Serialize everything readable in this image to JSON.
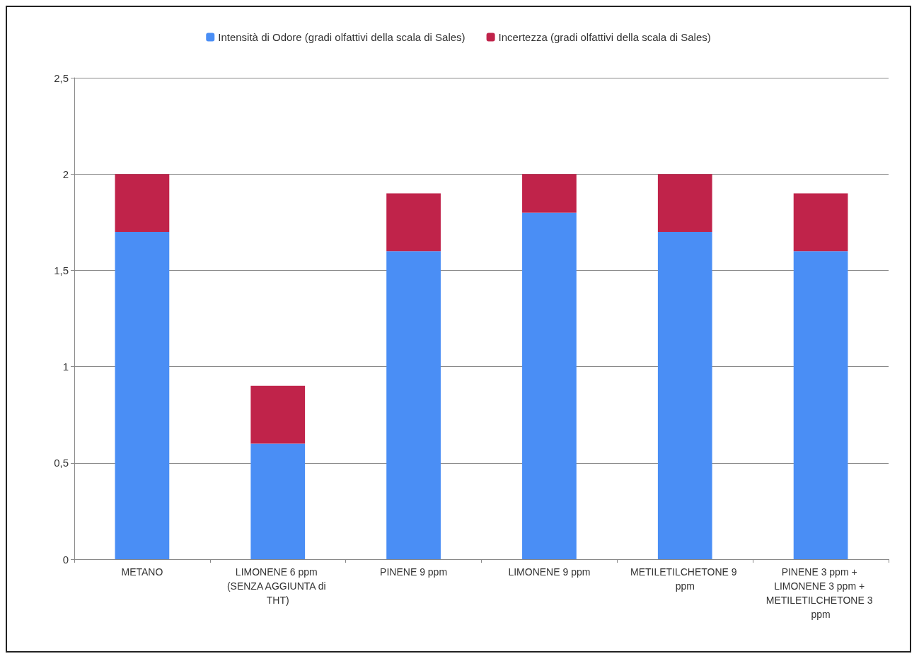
{
  "chart_data": {
    "type": "bar",
    "stacked": true,
    "categories": [
      "METANO",
      "LIMONENE 6 ppm (SENZA AGGIUNTA di THT)",
      "PINENE 9 ppm",
      "LIMONENE 9 ppm",
      "METILETILCHETONE 9 ppm",
      "PINENE 3 ppm + LIMONENE 3 ppm + METILETILCHETONE 3 ppm"
    ],
    "series": [
      {
        "name": "Intensità di Odore (gradi olfattivi della scala di Sales)",
        "color": "#4a8ef5",
        "values": [
          1.7,
          0.6,
          1.6,
          1.8,
          1.7,
          1.6
        ]
      },
      {
        "name": "Incertezza (gradi olfattivi della scala di Sales)",
        "color": "#c0234a",
        "values": [
          0.3,
          0.3,
          0.3,
          0.2,
          0.3,
          0.3
        ]
      }
    ],
    "ylim": [
      0,
      2.5
    ],
    "yticks": [
      0,
      {
        "value": 0.5,
        "label": "0,5"
      },
      1,
      {
        "value": 1.5,
        "label": "1,5"
      },
      2,
      {
        "value": 2.5,
        "label": "2,5"
      }
    ],
    "grid": "y",
    "legend": "top"
  }
}
